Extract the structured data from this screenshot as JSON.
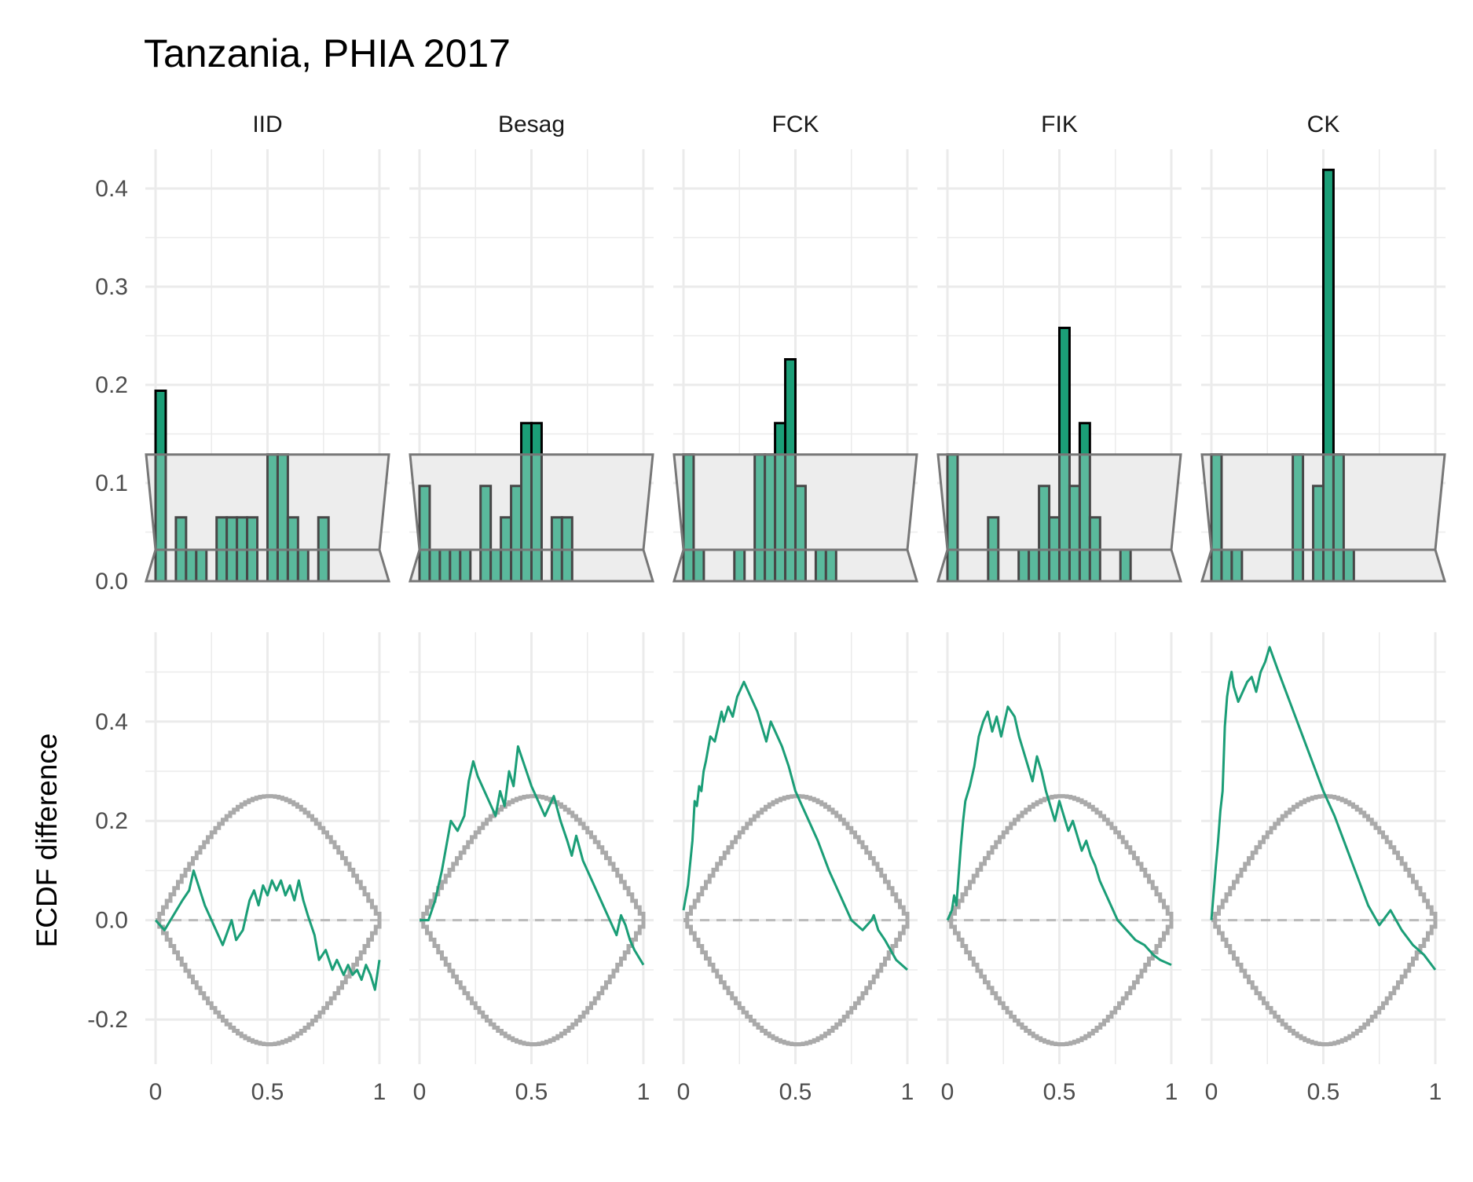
{
  "chart_data": {
    "type": "bar",
    "title": "Tanzania, PHIA 2017",
    "panels": [
      "IID",
      "Besag",
      "FCK",
      "FIK",
      "CK"
    ],
    "rows": [
      {
        "type": "bar",
        "description": "histogram of rank values",
        "ylabel": "",
        "xlim": [
          0,
          1
        ],
        "ylim": [
          0,
          0.44
        ],
        "y_ticks": [
          "0.0",
          "0.1",
          "0.2",
          "0.3",
          "0.4"
        ],
        "reference_band": {
          "outer_range": [
            0,
            0.129
          ],
          "inner_value": 0.032
        },
        "bin_width": 0.04545,
        "series": [
          {
            "name": "IID",
            "values": [
              0.194,
              0,
              0.065,
              0.032,
              0.032,
              0,
              0.065,
              0.065,
              0.065,
              0.065,
              0,
              0.129,
              0.129,
              0.065,
              0.032,
              0,
              0.065,
              0
            ]
          },
          {
            "name": "Besag",
            "values": [
              0.097,
              0.032,
              0.032,
              0.032,
              0.032,
              0,
              0.097,
              0.032,
              0.065,
              0.097,
              0.161,
              0.161,
              0,
              0.065,
              0.065,
              0,
              0,
              0
            ]
          },
          {
            "name": "FCK",
            "values": [
              0.129,
              0.032,
              0,
              0,
              0,
              0.032,
              0,
              0.129,
              0.129,
              0.161,
              0.226,
              0.097,
              0,
              0.032,
              0.032,
              0,
              0,
              0
            ]
          },
          {
            "name": "FIK",
            "values": [
              0.129,
              0,
              0,
              0,
              0.065,
              0,
              0,
              0.032,
              0.032,
              0.097,
              0.065,
              0.258,
              0.097,
              0.161,
              0.065,
              0,
              0,
              0.032
            ]
          },
          {
            "name": "CK",
            "values": [
              0.129,
              0.032,
              0.032,
              0,
              0,
              0,
              0,
              0,
              0.129,
              0,
              0.097,
              0.419,
              0.129,
              0.032,
              0,
              0,
              0,
              0
            ]
          }
        ]
      },
      {
        "type": "line",
        "ylabel": "ECDF difference",
        "xlim": [
          0,
          1
        ],
        "ylim": [
          -0.29,
          0.58
        ],
        "x_ticks": [
          "0",
          "0.5",
          "1"
        ],
        "y_ticks": [
          "-0.2",
          "0.0",
          "0.2",
          "0.4"
        ],
        "envelope": "±0.25·sin(πx) (approx.)",
        "series": [
          {
            "name": "IID",
            "x": [
              0,
              0.04,
              0.08,
              0.12,
              0.15,
              0.17,
              0.22,
              0.26,
              0.3,
              0.34,
              0.36,
              0.39,
              0.42,
              0.44,
              0.46,
              0.48,
              0.5,
              0.52,
              0.54,
              0.56,
              0.58,
              0.6,
              0.62,
              0.64,
              0.66,
              0.68,
              0.71,
              0.73,
              0.76,
              0.79,
              0.81,
              0.84,
              0.86,
              0.88,
              0.9,
              0.92,
              0.94,
              0.96,
              0.98,
              1.0
            ],
            "y": [
              0,
              -0.02,
              0.01,
              0.04,
              0.06,
              0.1,
              0.03,
              -0.01,
              -0.05,
              0.0,
              -0.04,
              -0.02,
              0.04,
              0.06,
              0.03,
              0.07,
              0.05,
              0.08,
              0.06,
              0.08,
              0.05,
              0.07,
              0.04,
              0.08,
              0.04,
              0.01,
              -0.03,
              -0.08,
              -0.06,
              -0.1,
              -0.08,
              -0.11,
              -0.09,
              -0.11,
              -0.1,
              -0.12,
              -0.09,
              -0.11,
              -0.14,
              -0.08
            ]
          },
          {
            "name": "Besag",
            "x": [
              0,
              0.04,
              0.07,
              0.1,
              0.12,
              0.14,
              0.17,
              0.2,
              0.22,
              0.24,
              0.26,
              0.28,
              0.31,
              0.34,
              0.36,
              0.38,
              0.4,
              0.42,
              0.44,
              0.47,
              0.5,
              0.53,
              0.56,
              0.6,
              0.63,
              0.66,
              0.68,
              0.7,
              0.73,
              0.76,
              0.8,
              0.84,
              0.88,
              0.9,
              0.92,
              0.94,
              0.96,
              1.0
            ],
            "y": [
              0,
              0.0,
              0.04,
              0.1,
              0.15,
              0.2,
              0.18,
              0.21,
              0.28,
              0.32,
              0.29,
              0.27,
              0.24,
              0.21,
              0.26,
              0.23,
              0.3,
              0.27,
              0.35,
              0.31,
              0.27,
              0.24,
              0.21,
              0.25,
              0.2,
              0.16,
              0.13,
              0.17,
              0.12,
              0.09,
              0.05,
              0.01,
              -0.03,
              0.01,
              -0.01,
              -0.04,
              -0.06,
              -0.09
            ]
          },
          {
            "name": "FCK",
            "x": [
              0,
              0.02,
              0.04,
              0.05,
              0.06,
              0.07,
              0.08,
              0.09,
              0.1,
              0.12,
              0.14,
              0.16,
              0.17,
              0.18,
              0.2,
              0.22,
              0.24,
              0.25,
              0.27,
              0.3,
              0.33,
              0.35,
              0.37,
              0.39,
              0.42,
              0.44,
              0.47,
              0.5,
              0.55,
              0.6,
              0.65,
              0.7,
              0.75,
              0.8,
              0.84,
              0.85,
              0.87,
              0.9,
              0.95,
              1.0
            ],
            "y": [
              0.02,
              0.07,
              0.16,
              0.24,
              0.23,
              0.27,
              0.26,
              0.3,
              0.32,
              0.37,
              0.36,
              0.4,
              0.42,
              0.4,
              0.43,
              0.41,
              0.45,
              0.46,
              0.48,
              0.45,
              0.42,
              0.39,
              0.36,
              0.4,
              0.37,
              0.35,
              0.31,
              0.26,
              0.21,
              0.16,
              0.1,
              0.05,
              0.0,
              -0.02,
              0.0,
              0.01,
              -0.02,
              -0.04,
              -0.08,
              -0.1
            ]
          },
          {
            "name": "FIK",
            "x": [
              0,
              0.02,
              0.03,
              0.04,
              0.05,
              0.06,
              0.07,
              0.08,
              0.1,
              0.12,
              0.14,
              0.16,
              0.18,
              0.2,
              0.22,
              0.24,
              0.27,
              0.3,
              0.32,
              0.34,
              0.36,
              0.38,
              0.4,
              0.42,
              0.44,
              0.46,
              0.48,
              0.5,
              0.52,
              0.54,
              0.56,
              0.58,
              0.6,
              0.62,
              0.64,
              0.66,
              0.68,
              0.72,
              0.76,
              0.8,
              0.84,
              0.88,
              0.92,
              0.95,
              1.0
            ],
            "y": [
              0,
              0.02,
              0.05,
              0.03,
              0.09,
              0.15,
              0.2,
              0.24,
              0.27,
              0.31,
              0.37,
              0.4,
              0.42,
              0.38,
              0.41,
              0.37,
              0.43,
              0.41,
              0.37,
              0.34,
              0.31,
              0.28,
              0.33,
              0.3,
              0.26,
              0.23,
              0.2,
              0.24,
              0.21,
              0.18,
              0.2,
              0.17,
              0.14,
              0.16,
              0.13,
              0.11,
              0.08,
              0.04,
              0.0,
              -0.02,
              -0.04,
              -0.05,
              -0.07,
              -0.08,
              -0.09
            ]
          },
          {
            "name": "CK",
            "x": [
              0,
              0.02,
              0.03,
              0.04,
              0.05,
              0.06,
              0.07,
              0.08,
              0.09,
              0.1,
              0.12,
              0.14,
              0.16,
              0.18,
              0.2,
              0.22,
              0.24,
              0.26,
              0.3,
              0.35,
              0.4,
              0.45,
              0.5,
              0.55,
              0.6,
              0.65,
              0.7,
              0.75,
              0.8,
              0.85,
              0.9,
              0.95,
              1.0
            ],
            "y": [
              0,
              0.11,
              0.16,
              0.22,
              0.26,
              0.39,
              0.45,
              0.48,
              0.5,
              0.47,
              0.44,
              0.46,
              0.48,
              0.49,
              0.46,
              0.5,
              0.52,
              0.55,
              0.5,
              0.44,
              0.38,
              0.32,
              0.26,
              0.21,
              0.15,
              0.09,
              0.03,
              -0.01,
              0.02,
              -0.02,
              -0.05,
              -0.07,
              -0.1
            ]
          }
        ]
      }
    ],
    "grid": true,
    "legend": "none",
    "colors": {
      "bar_fill": "#1b9e77",
      "bar_stroke": "#000000",
      "line": "#1b9e77",
      "band_fill": "#e6e6e6",
      "band_stroke": "#777777",
      "envelope": "#aaaaaa",
      "zero_line": "#bbbbbb",
      "grid": "#ebebeb"
    }
  }
}
